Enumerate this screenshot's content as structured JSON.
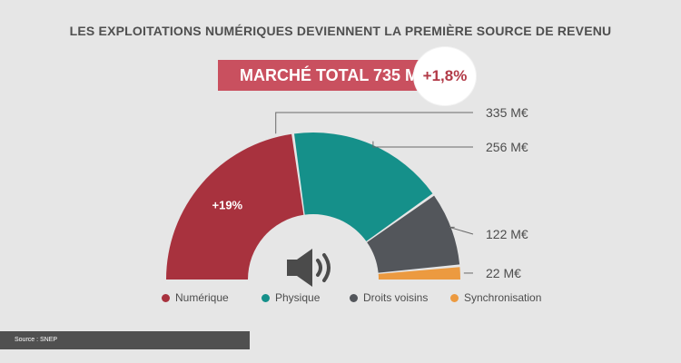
{
  "title": "LES EXPLOITATIONS NUMÉRIQUES DEVIENNENT LA PREMIÈRE SOURCE DE REVENU",
  "total_banner": "MARCHÉ TOTAL 735 M€",
  "growth_badge": "+1,8%",
  "source": "Source : SNEP",
  "colors": {
    "numerique": "#a8323e",
    "physique": "#15908a",
    "droits_voisins": "#53565b",
    "synchronisation": "#ec9a40",
    "leader_lines": "#6a6a6a"
  },
  "icon": "speaker-icon",
  "chart_data": {
    "type": "pie",
    "variant": "semi-donut",
    "title": "LES EXPLOITATIONS NUMÉRIQUES DEVIENNENT LA PREMIÈRE SOURCE DE REVENU",
    "total_label": "MARCHÉ TOTAL 735 M€",
    "total_value": 735,
    "unit": "M€",
    "slices": [
      {
        "name": "Numérique",
        "value": 335,
        "value_label": "335 M€",
        "annotation": "+19%",
        "color": "#a8323e"
      },
      {
        "name": "Physique",
        "value": 256,
        "value_label": "256 M€",
        "color": "#15908a"
      },
      {
        "name": "Droits voisins",
        "value": 122,
        "value_label": "122 M€",
        "color": "#53565b"
      },
      {
        "name": "Synchronisation",
        "value": 22,
        "value_label": "22 M€",
        "color": "#ec9a40"
      }
    ],
    "legend_position": "bottom"
  }
}
